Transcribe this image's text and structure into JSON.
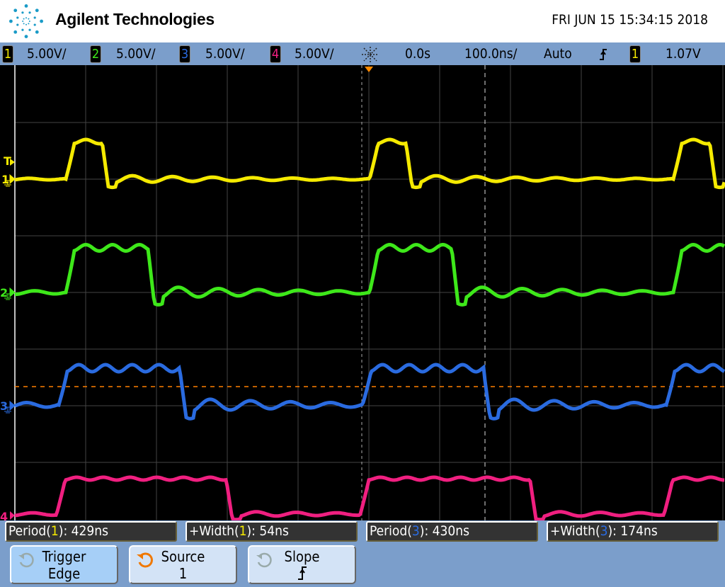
{
  "header": {
    "brand": "Agilent Technologies",
    "datetime": "FRI JUN 15 15:34:15 2018",
    "logo_icon": "agilent-spark-logo"
  },
  "status": {
    "channels": [
      {
        "num": "1",
        "scale": "5.00V/",
        "color": "#f5ea00"
      },
      {
        "num": "2",
        "scale": "5.00V/",
        "color": "#3ee81a"
      },
      {
        "num": "3",
        "scale": "5.00V/",
        "color": "#2a6be0"
      },
      {
        "num": "4",
        "scale": "5.00V/",
        "color": "#f01f80"
      }
    ],
    "run_icon": "acquisition-spark-icon",
    "delay": "0.0s",
    "timebase": "100.0ns/",
    "trigger_mode": "Auto",
    "trigger_slope_icon": "rising-edge-icon",
    "trigger_source": "1",
    "trigger_level": "1.07V"
  },
  "scope": {
    "trigger_marker": "T",
    "ground_markers": [
      "1",
      "2",
      "3",
      "4"
    ],
    "trigger_level_line_color": "#ff8000"
  },
  "measurements": [
    {
      "name": "Period(",
      "ch": "1",
      "suffix": "): 429ns",
      "color": "#f5ea00"
    },
    {
      "name": "+Width(",
      "ch": "1",
      "suffix": "): 54ns",
      "color": "#f5ea00"
    },
    {
      "name": "Period(",
      "ch": "3",
      "suffix": "): 430ns",
      "color": "#2a6be0"
    },
    {
      "name": "+Width(",
      "ch": "3",
      "suffix": "): 174ns",
      "color": "#2a6be0"
    }
  ],
  "softkeys": [
    {
      "line1": "Trigger",
      "line2": "Edge",
      "selected": true
    },
    {
      "line1": "Source",
      "line2": "1",
      "knob_active": true
    },
    {
      "line1": "Slope",
      "line2": "⨍"
    }
  ]
}
